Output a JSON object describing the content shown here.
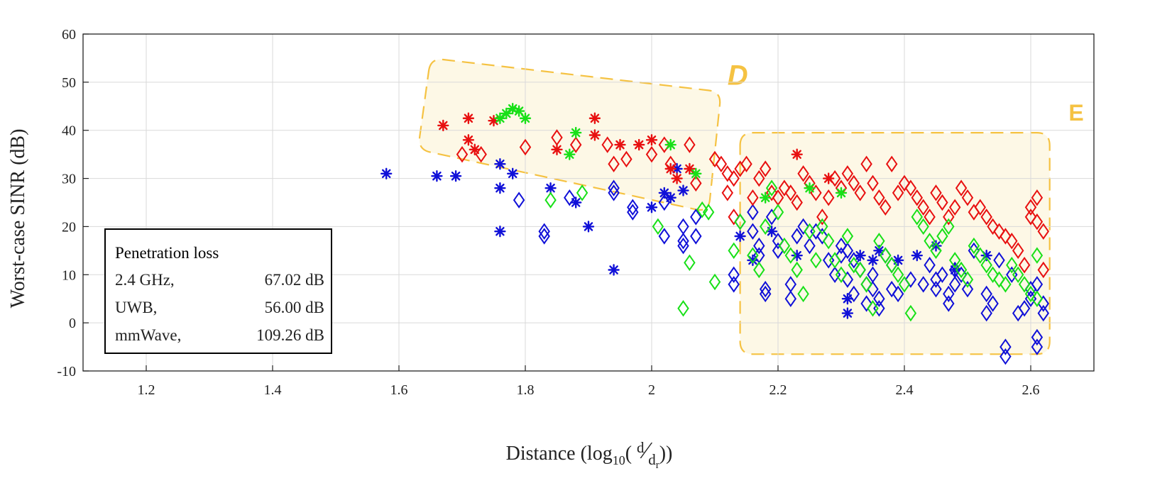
{
  "chart_data": {
    "type": "scatter",
    "title": "",
    "xlabel": {
      "prefix": "Distance (log",
      "sub": "10",
      "open": "( ",
      "num": "d",
      "slash": "⁄",
      "den": "d",
      "den_sub": "r",
      "close": "))"
    },
    "ylabel": "Worst-case SINR (dB)",
    "xlim": [
      1.1,
      2.7
    ],
    "ylim": [
      -10,
      60
    ],
    "xticks": [
      "1.2",
      "1.4",
      "1.6",
      "1.8",
      "2",
      "2.2",
      "2.4",
      "2.6"
    ],
    "yticks": [
      "-10",
      "0",
      "10",
      "20",
      "30",
      "40",
      "50",
      "60"
    ],
    "grid": true,
    "legend": {
      "placement": "lower-left",
      "title": "Penetration loss",
      "entries": [
        {
          "name": "2.4 GHz,",
          "value": "67.02 dB",
          "color": "#1010d8"
        },
        {
          "name": "UWB,",
          "value": "56.00 dB",
          "color": "#e81010"
        },
        {
          "name": "mmWave,",
          "value": "109.26 dB",
          "color": "#18e018"
        }
      ]
    },
    "regions": [
      {
        "label": "D",
        "color": "#f5c242",
        "fill": "#fdf8e6",
        "corners": [
          [
            1.65,
            55
          ],
          [
            2.11,
            48
          ],
          [
            2.09,
            23
          ],
          [
            1.63,
            36
          ]
        ]
      },
      {
        "label": "E",
        "color": "#f5c242",
        "fill": "#fdf8e6",
        "corners": [
          [
            2.14,
            39.5
          ],
          [
            2.63,
            39.5
          ],
          [
            2.63,
            -6.5
          ],
          [
            2.14,
            -6.5
          ]
        ]
      }
    ],
    "series": [
      {
        "name": "2.4 GHz",
        "color": "#1010d8",
        "star": [
          [
            1.58,
            31
          ],
          [
            1.66,
            30.5
          ],
          [
            1.69,
            30.5
          ],
          [
            1.76,
            33
          ],
          [
            1.76,
            28
          ],
          [
            1.76,
            19
          ],
          [
            1.78,
            31
          ],
          [
            1.84,
            28
          ],
          [
            1.88,
            25
          ],
          [
            1.9,
            20
          ],
          [
            1.94,
            11
          ],
          [
            2.0,
            24
          ],
          [
            2.02,
            27
          ],
          [
            2.03,
            26
          ],
          [
            2.05,
            27.5
          ],
          [
            2.04,
            32
          ],
          [
            2.14,
            18
          ],
          [
            2.16,
            13
          ],
          [
            2.19,
            19
          ],
          [
            2.23,
            14
          ],
          [
            2.31,
            2
          ],
          [
            2.31,
            5
          ],
          [
            2.33,
            14
          ],
          [
            2.35,
            13
          ],
          [
            2.36,
            15
          ],
          [
            2.39,
            13
          ],
          [
            2.42,
            14
          ],
          [
            2.45,
            16
          ],
          [
            2.48,
            11
          ],
          [
            2.53,
            14
          ]
        ],
        "diamond": [
          [
            1.79,
            25.5
          ],
          [
            1.83,
            19
          ],
          [
            1.83,
            18
          ],
          [
            1.87,
            26
          ],
          [
            1.94,
            28
          ],
          [
            1.94,
            27
          ],
          [
            1.97,
            24
          ],
          [
            1.97,
            23
          ],
          [
            2.02,
            25
          ],
          [
            2.02,
            18
          ],
          [
            2.05,
            20
          ],
          [
            2.05,
            17
          ],
          [
            2.05,
            16
          ],
          [
            2.07,
            22
          ],
          [
            2.07,
            18
          ],
          [
            2.13,
            10
          ],
          [
            2.13,
            8
          ],
          [
            2.14,
            21
          ],
          [
            2.16,
            23
          ],
          [
            2.16,
            19
          ],
          [
            2.17,
            16
          ],
          [
            2.17,
            14
          ],
          [
            2.18,
            7
          ],
          [
            2.18,
            6
          ],
          [
            2.19,
            22
          ],
          [
            2.2,
            17
          ],
          [
            2.2,
            15
          ],
          [
            2.22,
            8
          ],
          [
            2.22,
            5
          ],
          [
            2.23,
            18
          ],
          [
            2.24,
            20
          ],
          [
            2.25,
            16
          ],
          [
            2.26,
            19
          ],
          [
            2.27,
            18
          ],
          [
            2.28,
            13
          ],
          [
            2.29,
            10
          ],
          [
            2.3,
            16
          ],
          [
            2.3,
            14
          ],
          [
            2.31,
            15
          ],
          [
            2.31,
            9
          ],
          [
            2.32,
            6
          ],
          [
            2.32,
            13
          ],
          [
            2.33,
            11
          ],
          [
            2.34,
            8
          ],
          [
            2.34,
            4
          ],
          [
            2.35,
            10
          ],
          [
            2.35,
            7
          ],
          [
            2.36,
            3
          ],
          [
            2.36,
            5
          ],
          [
            2.37,
            14
          ],
          [
            2.38,
            7
          ],
          [
            2.38,
            12
          ],
          [
            2.39,
            6
          ],
          [
            2.41,
            9
          ],
          [
            2.43,
            8
          ],
          [
            2.44,
            12
          ],
          [
            2.45,
            9
          ],
          [
            2.45,
            7
          ],
          [
            2.46,
            10
          ],
          [
            2.47,
            6
          ],
          [
            2.47,
            4
          ],
          [
            2.48,
            11
          ],
          [
            2.48,
            8
          ],
          [
            2.49,
            10
          ],
          [
            2.5,
            7
          ],
          [
            2.51,
            15
          ],
          [
            2.53,
            6
          ],
          [
            2.53,
            2
          ],
          [
            2.54,
            4
          ],
          [
            2.55,
            13
          ],
          [
            2.56,
            -5
          ],
          [
            2.56,
            -7
          ],
          [
            2.57,
            10
          ],
          [
            2.58,
            2
          ],
          [
            2.59,
            3
          ],
          [
            2.6,
            7
          ],
          [
            2.6,
            5
          ],
          [
            2.61,
            8
          ],
          [
            2.61,
            -3
          ],
          [
            2.61,
            -5
          ],
          [
            2.62,
            2
          ],
          [
            2.62,
            4
          ]
        ]
      },
      {
        "name": "UWB",
        "color": "#e81010",
        "star": [
          [
            1.67,
            41
          ],
          [
            1.71,
            42.5
          ],
          [
            1.71,
            38
          ],
          [
            1.72,
            36
          ],
          [
            1.75,
            42
          ],
          [
            1.85,
            36
          ],
          [
            1.91,
            42.5
          ],
          [
            1.91,
            39
          ],
          [
            1.95,
            37
          ],
          [
            1.98,
            37
          ],
          [
            2.0,
            38
          ],
          [
            2.03,
            32
          ],
          [
            2.04,
            30
          ],
          [
            2.06,
            32
          ],
          [
            2.23,
            35
          ],
          [
            2.28,
            30
          ]
        ],
        "diamond": [
          [
            1.7,
            35
          ],
          [
            1.73,
            35
          ],
          [
            1.8,
            36.5
          ],
          [
            1.85,
            38.5
          ],
          [
            1.88,
            37
          ],
          [
            1.93,
            37
          ],
          [
            1.94,
            33
          ],
          [
            1.96,
            34
          ],
          [
            2.0,
            35
          ],
          [
            2.02,
            37
          ],
          [
            2.03,
            33
          ],
          [
            2.06,
            37
          ],
          [
            2.07,
            29
          ],
          [
            2.1,
            34
          ],
          [
            2.11,
            33
          ],
          [
            2.12,
            31
          ],
          [
            2.12,
            27
          ],
          [
            2.13,
            30
          ],
          [
            2.13,
            22
          ],
          [
            2.14,
            32
          ],
          [
            2.15,
            33
          ],
          [
            2.16,
            26
          ],
          [
            2.17,
            30
          ],
          [
            2.18,
            32
          ],
          [
            2.19,
            27
          ],
          [
            2.2,
            26
          ],
          [
            2.21,
            28
          ],
          [
            2.22,
            27
          ],
          [
            2.23,
            25
          ],
          [
            2.24,
            31
          ],
          [
            2.25,
            29
          ],
          [
            2.26,
            27
          ],
          [
            2.27,
            22
          ],
          [
            2.28,
            26
          ],
          [
            2.29,
            30
          ],
          [
            2.3,
            28
          ],
          [
            2.31,
            31
          ],
          [
            2.32,
            29
          ],
          [
            2.33,
            27
          ],
          [
            2.34,
            33
          ],
          [
            2.35,
            29
          ],
          [
            2.36,
            26
          ],
          [
            2.37,
            24
          ],
          [
            2.38,
            33
          ],
          [
            2.39,
            27
          ],
          [
            2.4,
            29
          ],
          [
            2.41,
            28
          ],
          [
            2.42,
            26
          ],
          [
            2.43,
            24
          ],
          [
            2.44,
            22
          ],
          [
            2.45,
            27
          ],
          [
            2.46,
            25
          ],
          [
            2.47,
            22
          ],
          [
            2.48,
            24
          ],
          [
            2.49,
            28
          ],
          [
            2.5,
            26
          ],
          [
            2.51,
            23
          ],
          [
            2.52,
            24
          ],
          [
            2.53,
            22
          ],
          [
            2.54,
            20
          ],
          [
            2.55,
            19
          ],
          [
            2.56,
            18
          ],
          [
            2.57,
            17
          ],
          [
            2.58,
            15
          ],
          [
            2.59,
            12
          ],
          [
            2.6,
            24
          ],
          [
            2.6,
            22
          ],
          [
            2.61,
            26
          ],
          [
            2.61,
            21
          ],
          [
            2.62,
            19
          ],
          [
            2.62,
            11
          ]
        ]
      },
      {
        "name": "mmWave",
        "color": "#18e018",
        "star": [
          [
            1.76,
            42.5
          ],
          [
            1.77,
            43.5
          ],
          [
            1.78,
            44.5
          ],
          [
            1.79,
            44
          ],
          [
            1.8,
            42.5
          ],
          [
            1.87,
            35
          ],
          [
            1.88,
            39.5
          ],
          [
            2.03,
            37
          ],
          [
            2.07,
            31
          ],
          [
            2.18,
            26
          ],
          [
            2.25,
            28
          ],
          [
            2.3,
            27
          ]
        ],
        "diamond": [
          [
            1.84,
            25.5
          ],
          [
            1.89,
            27
          ],
          [
            2.01,
            20
          ],
          [
            2.05,
            3
          ],
          [
            2.06,
            12.5
          ],
          [
            2.08,
            23.5
          ],
          [
            2.09,
            23
          ],
          [
            2.1,
            8.5
          ],
          [
            2.13,
            15
          ],
          [
            2.14,
            21
          ],
          [
            2.16,
            14
          ],
          [
            2.17,
            11
          ],
          [
            2.18,
            20
          ],
          [
            2.19,
            28
          ],
          [
            2.2,
            23
          ],
          [
            2.21,
            16
          ],
          [
            2.22,
            14
          ],
          [
            2.23,
            11
          ],
          [
            2.24,
            6
          ],
          [
            2.25,
            19
          ],
          [
            2.26,
            13
          ],
          [
            2.27,
            20
          ],
          [
            2.28,
            17
          ],
          [
            2.29,
            13
          ],
          [
            2.3,
            10
          ],
          [
            2.31,
            18
          ],
          [
            2.32,
            12
          ],
          [
            2.33,
            11
          ],
          [
            2.34,
            8
          ],
          [
            2.35,
            3
          ],
          [
            2.36,
            17
          ],
          [
            2.37,
            14
          ],
          [
            2.38,
            12
          ],
          [
            2.39,
            10
          ],
          [
            2.4,
            8
          ],
          [
            2.41,
            2
          ],
          [
            2.42,
            22
          ],
          [
            2.43,
            20
          ],
          [
            2.44,
            17
          ],
          [
            2.45,
            15
          ],
          [
            2.46,
            18
          ],
          [
            2.47,
            20
          ],
          [
            2.48,
            13
          ],
          [
            2.49,
            11
          ],
          [
            2.5,
            9
          ],
          [
            2.51,
            16
          ],
          [
            2.52,
            14
          ],
          [
            2.53,
            12
          ],
          [
            2.54,
            10
          ],
          [
            2.55,
            9
          ],
          [
            2.56,
            8
          ],
          [
            2.57,
            12
          ],
          [
            2.58,
            10
          ],
          [
            2.59,
            8
          ],
          [
            2.6,
            6
          ],
          [
            2.61,
            5
          ],
          [
            2.61,
            14
          ]
        ]
      }
    ]
  }
}
